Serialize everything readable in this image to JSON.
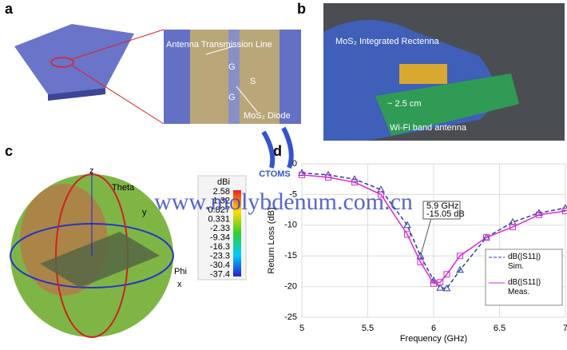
{
  "panel_a": {
    "label": "a",
    "annotations": [
      "Antenna Transmission Line",
      "G",
      "S",
      "G",
      "MoS₂ Diode"
    ]
  },
  "panel_b": {
    "label": "b",
    "annotations": [
      "MoS₂ Integrated Rectenna",
      "~ 2.5 cm",
      "Wi-Fi band antenna"
    ]
  },
  "panel_c": {
    "label": "c",
    "axes": [
      "z",
      "y",
      "x",
      "Theta",
      "Phi"
    ],
    "colorbar_title": "dBi",
    "colorbar_labels": [
      "2.58",
      "1.32",
      "0.827",
      "0.331",
      "-2.33",
      "-9.34",
      "-16.3",
      "-23.3",
      "-30.4",
      "-37.4"
    ]
  },
  "watermark": {
    "logo": "CTOMS",
    "url": "www.molybdenum.com.cn"
  },
  "chart_data": {
    "type": "line",
    "panel_label": "d",
    "xlabel": "Frequency (GHz)",
    "ylabel": "Return Loss (dB)",
    "x": [
      5,
      5.2,
      5.4,
      5.6,
      5.8,
      5.9,
      6,
      6.05,
      6.1,
      6.2,
      6.4,
      6.6,
      6.8,
      7
    ],
    "xlim": [
      5,
      7
    ],
    "xticks": [
      5,
      5.5,
      6,
      6.5,
      7
    ],
    "ylim": [
      -25,
      0
    ],
    "yticks": [
      -25,
      -20,
      -15,
      -10,
      -5,
      0
    ],
    "grid": true,
    "legend": "lower right",
    "series": [
      {
        "name": "dB(|S11|) Sim.",
        "color": "#2a3f9e",
        "dash": true,
        "marker": "triangle",
        "values": [
          -1.5,
          -1.8,
          -2.5,
          -4.2,
          -10,
          -15,
          -19,
          -20.2,
          -20.3,
          -17.3,
          -12,
          -9.5,
          -8,
          -7.2
        ]
      },
      {
        "name": "dB(|S11|) Meas.",
        "color": "#d62ad6",
        "dash": false,
        "marker": "square",
        "values": [
          -1.8,
          -2.2,
          -3,
          -5,
          -11.5,
          -16,
          -19.5,
          -19.3,
          -18,
          -15,
          -12,
          -10.3,
          -8.3,
          -7.7
        ]
      }
    ],
    "annotation": {
      "x": 5.9,
      "y": -15.05,
      "lines": [
        "5.9 GHz",
        "-15.05 dB"
      ]
    }
  }
}
